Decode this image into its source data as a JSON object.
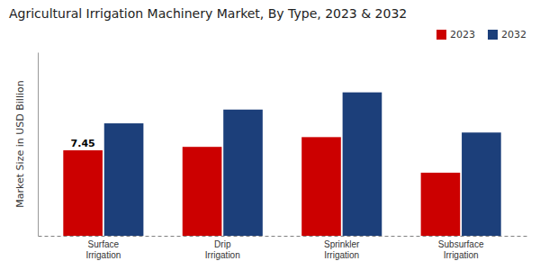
{
  "chart_data": {
    "type": "bar",
    "title": "Agricultural Irrigation Machinery Market, By Type, 2023 & 2032",
    "ylabel": "Market Size in USD Billion",
    "categories": [
      "Surface\nIrrigation",
      "Drip\nIrrigation",
      "Sprinkler\nIrrigation",
      "Subsurface\nIrrigation"
    ],
    "series": [
      {
        "name": "2023",
        "color": "#cc0000",
        "values": [
          7.45,
          7.75,
          8.6,
          5.5
        ]
      },
      {
        "name": "2032",
        "color": "#1c3f7a",
        "values": [
          9.8,
          11.0,
          12.5,
          9.0
        ]
      }
    ],
    "annotations": [
      {
        "text": "7.45",
        "x": "Surface\nIrrigation",
        "series": "2023",
        "y": 7.45
      }
    ],
    "ylim": [
      0,
      16
    ],
    "grid": false,
    "legend": "top-right",
    "tick_labels": "x"
  }
}
